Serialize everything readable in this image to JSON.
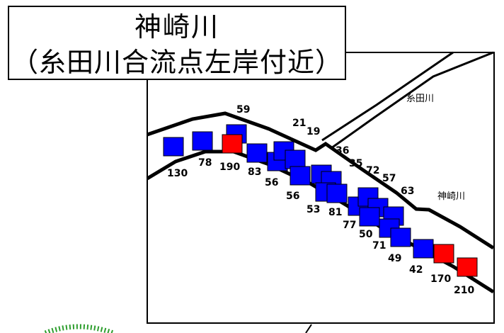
{
  "title": {
    "line1": "神崎川",
    "line2": "（糸田川合流点左岸付近）"
  },
  "rivers": {
    "itoda": "糸田川",
    "kanzaki": "神崎川"
  },
  "colors": {
    "measurement_normal": "#0000ff",
    "measurement_high": "#ff0000",
    "bank_line": "#000000",
    "frame": "#000000",
    "decorative_dotted": "#2e9e2e"
  },
  "measurements": [
    {
      "label": "130",
      "value": 130,
      "level": "normal"
    },
    {
      "label": "78",
      "value": 78,
      "level": "normal"
    },
    {
      "label": "59",
      "value": 59,
      "level": "normal"
    },
    {
      "label": "190",
      "value": 190,
      "level": "high"
    },
    {
      "label": "83",
      "value": 83,
      "level": "normal"
    },
    {
      "label": "56",
      "value": 56,
      "level": "normal"
    },
    {
      "label": "56",
      "value": 56,
      "level": "normal"
    },
    {
      "label": "21",
      "value": 21,
      "level": "normal"
    },
    {
      "label": "19",
      "value": 19,
      "level": "normal"
    },
    {
      "label": "36",
      "value": 36,
      "level": "normal"
    },
    {
      "label": "35",
      "value": 35,
      "level": "normal"
    },
    {
      "label": "72",
      "value": 72,
      "level": "normal"
    },
    {
      "label": "57",
      "value": 57,
      "level": "normal"
    },
    {
      "label": "53",
      "value": 53,
      "level": "normal"
    },
    {
      "label": "81",
      "value": 81,
      "level": "normal"
    },
    {
      "label": "63",
      "value": 63,
      "level": "normal"
    },
    {
      "label": "77",
      "value": 77,
      "level": "normal"
    },
    {
      "label": "50",
      "value": 50,
      "level": "normal"
    },
    {
      "label": "71",
      "value": 71,
      "level": "normal"
    },
    {
      "label": "49",
      "value": 49,
      "level": "normal"
    },
    {
      "label": "42",
      "value": 42,
      "level": "normal"
    },
    {
      "label": "170",
      "value": 170,
      "level": "high"
    },
    {
      "label": "210",
      "value": 210,
      "level": "high"
    }
  ]
}
